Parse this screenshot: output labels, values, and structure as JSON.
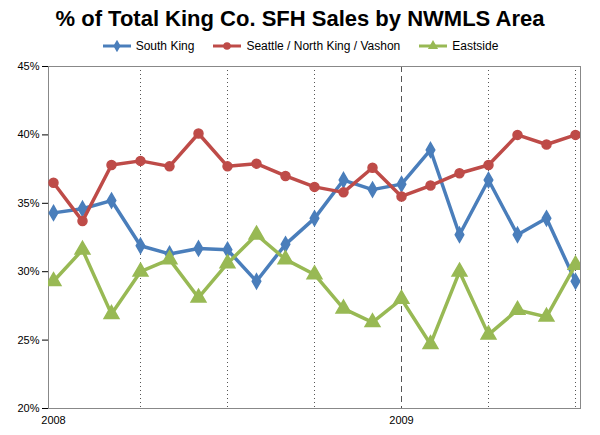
{
  "chart_data": {
    "type": "line",
    "title": "% of Total King Co. SFH Sales by NWMLS Area",
    "categories": [
      "2008",
      null,
      null,
      null,
      null,
      null,
      null,
      null,
      null,
      null,
      null,
      null,
      "2009",
      null,
      null,
      null,
      null,
      null,
      null
    ],
    "series": [
      {
        "name": "South King",
        "color": "#4a7ebb",
        "marker": "diamond",
        "values": [
          34.3,
          34.6,
          35.2,
          31.9,
          31.3,
          31.7,
          31.6,
          29.3,
          32.0,
          33.9,
          36.7,
          36.0,
          36.4,
          38.9,
          32.7,
          36.7,
          32.7,
          33.9,
          29.3
        ]
      },
      {
        "name": "Seattle / North King / Vashon",
        "color": "#be4b48",
        "marker": "circle",
        "values": [
          36.5,
          33.7,
          37.8,
          38.1,
          37.7,
          40.1,
          37.7,
          37.9,
          37.0,
          36.2,
          35.8,
          37.6,
          35.5,
          36.3,
          37.2,
          37.8,
          40.0,
          39.3,
          40.0
        ]
      },
      {
        "name": "Eastside",
        "color": "#98b954",
        "marker": "triangle",
        "values": [
          29.3,
          31.6,
          26.9,
          30.0,
          30.9,
          28.1,
          30.6,
          32.7,
          30.9,
          29.8,
          27.3,
          26.3,
          28.0,
          24.7,
          30.0,
          25.4,
          27.2,
          26.7,
          30.5
        ]
      }
    ],
    "ylim": [
      20,
      45
    ],
    "yticks": [
      {
        "value": 20,
        "label": "20%"
      },
      {
        "value": 25,
        "label": "25%"
      },
      {
        "value": 30,
        "label": "30%"
      },
      {
        "value": 35,
        "label": "35%"
      },
      {
        "value": 40,
        "label": "40%"
      },
      {
        "value": 45,
        "label": "45%"
      }
    ],
    "grid": true,
    "legend": "top"
  }
}
